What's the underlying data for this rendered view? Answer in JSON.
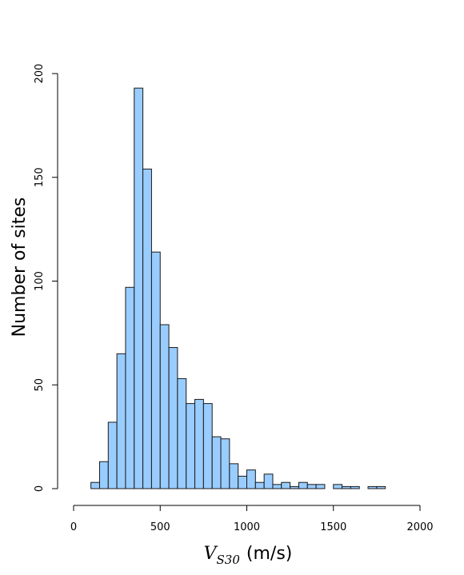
{
  "chart_data": {
    "type": "bar",
    "title": "",
    "xlabel": "(m/s)",
    "xlabel_symbol": "V",
    "xlabel_subscript": "S30",
    "ylabel": "Number of sites",
    "bin_width": 50,
    "bin_starts": [
      100,
      150,
      200,
      250,
      300,
      350,
      400,
      450,
      500,
      550,
      600,
      650,
      700,
      750,
      800,
      850,
      900,
      950,
      1000,
      1050,
      1100,
      1150,
      1200,
      1250,
      1300,
      1350,
      1400,
      1450,
      1500,
      1550,
      1600,
      1650,
      1700,
      1750
    ],
    "values": [
      3,
      13,
      32,
      65,
      97,
      193,
      154,
      114,
      79,
      68,
      53,
      41,
      43,
      41,
      25,
      24,
      12,
      6,
      9,
      3,
      7,
      2,
      3,
      1,
      3,
      2,
      2,
      0,
      2,
      1,
      1,
      0,
      1,
      1
    ],
    "xlim": [
      0,
      2000
    ],
    "ylim": [
      0,
      200
    ],
    "x_ticks": [
      0,
      500,
      1000,
      1500,
      2000
    ],
    "y_ticks": [
      0,
      50,
      100,
      150,
      200
    ],
    "bar_color": "#99ccff",
    "edge_color": "#1a1a1a",
    "grid": false
  }
}
